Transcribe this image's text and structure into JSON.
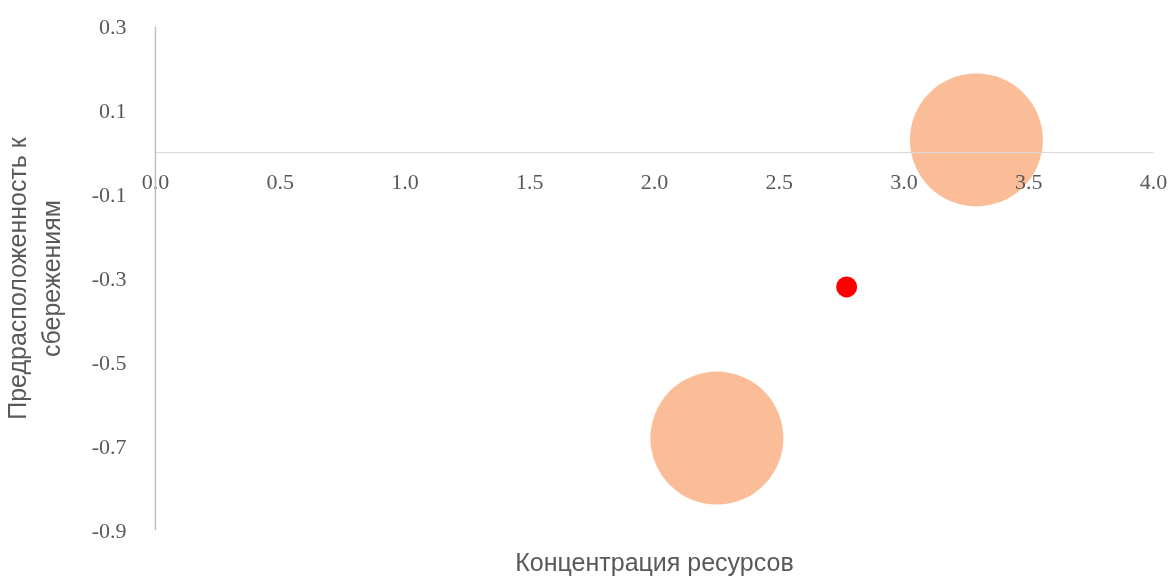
{
  "chart_data": {
    "type": "bubble",
    "xlabel": "Концентрация ресурсов",
    "ylabel": "Предрасположенность к сбережениям",
    "x": [
      3.29,
      2.25,
      2.77
    ],
    "values": [
      0.03,
      -0.68,
      -0.32
    ],
    "sizes": [
      1,
      1,
      0.025
    ],
    "colors": [
      "#fbbd97",
      "#fbbd97",
      "#ff0000"
    ],
    "marker": "circle",
    "xlim": [
      0,
      4
    ],
    "ylim": [
      -0.9,
      0.3
    ],
    "xticks": [
      {
        "value": 0,
        "label": "0.0"
      },
      0.5,
      {
        "value": 1,
        "label": "1.0"
      },
      1.5,
      {
        "value": 2,
        "label": "2.0"
      },
      2.5,
      {
        "value": 3,
        "label": "3.0"
      },
      3.5,
      {
        "value": 4,
        "label": "4.0"
      }
    ],
    "yticks": [
      -0.9,
      -0.7,
      -0.5,
      -0.3,
      -0.1,
      0.1,
      0.3
    ],
    "grid": false
  }
}
